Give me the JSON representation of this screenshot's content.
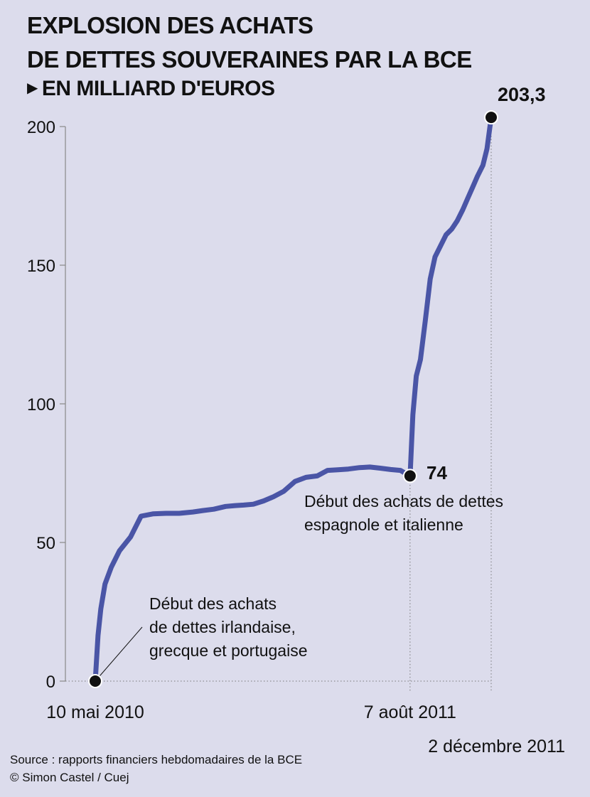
{
  "chart_data": {
    "type": "line",
    "title_lines": [
      "EXPLOSION DES ACHATS",
      "DE DETTES SOUVERAINES PAR LA BCE"
    ],
    "subtitle": "EN MILLIARD D'EUROS",
    "y_ticks": [
      0,
      50,
      100,
      150,
      200
    ],
    "ylim": [
      0,
      203.3
    ],
    "x_labels": [
      "10 mai 2010",
      "7 août 2011",
      "2 décembre 2011"
    ],
    "series": [
      {
        "color": "#4a55a6",
        "x": [
          "10 mai 2010",
          "2010-05-14",
          "2010-05-18",
          "2010-05-24",
          "2010-06-02",
          "2010-06-14",
          "2010-06-30",
          "2010-07-15",
          "2010-08-01",
          "2010-08-20",
          "2010-09-08",
          "2010-09-28",
          "2010-10-12",
          "2010-10-28",
          "2010-11-14",
          "2010-11-28",
          "2010-12-10",
          "2010-12-24",
          "2011-01-08",
          "2011-01-22",
          "2011-02-06",
          "2011-02-22",
          "2011-03-10",
          "2011-03-26",
          "2011-04-10",
          "2011-04-25",
          "2011-05-10",
          "2011-05-26",
          "2011-06-10",
          "2011-06-25",
          "2011-07-10",
          "2011-07-24",
          "7 août 2011",
          "2011-08-11",
          "2011-08-16",
          "2011-08-22",
          "2011-08-29",
          "2011-09-05",
          "2011-09-12",
          "2011-09-20",
          "2011-09-28",
          "2011-10-06",
          "2011-10-14",
          "2011-10-22",
          "2011-10-29",
          "2011-11-05",
          "2011-11-12",
          "2011-11-20",
          "2011-11-26",
          "2 décembre 2011"
        ],
        "values": [
          0,
          16.5,
          26,
          35,
          41,
          47,
          52,
          59.5,
          60.3,
          60.5,
          60.5,
          61,
          61.5,
          62,
          63,
          63.3,
          63.5,
          63.8,
          65,
          66.5,
          68.5,
          72,
          73.5,
          74,
          76,
          76.2,
          76.5,
          77,
          77.2,
          76.8,
          76.3,
          76,
          74,
          96,
          110,
          116,
          130,
          145,
          153,
          157,
          161,
          163,
          166,
          170,
          174,
          178,
          182,
          186,
          192,
          203.3
        ]
      }
    ],
    "annotations": [
      {
        "lines": [
          "Début des achats",
          "de dettes irlandaise,",
          "grecque et portugaise"
        ]
      },
      {
        "value_label": "74",
        "lines": [
          "Début des achats de dettes",
          "espagnole et italienne"
        ]
      },
      {
        "value_label": "203,3"
      }
    ],
    "grid": false
  },
  "footer": {
    "source": "Source : rapports financiers hebdomadaires de la BCE",
    "credit": "© Simon Castel / Cuej"
  }
}
